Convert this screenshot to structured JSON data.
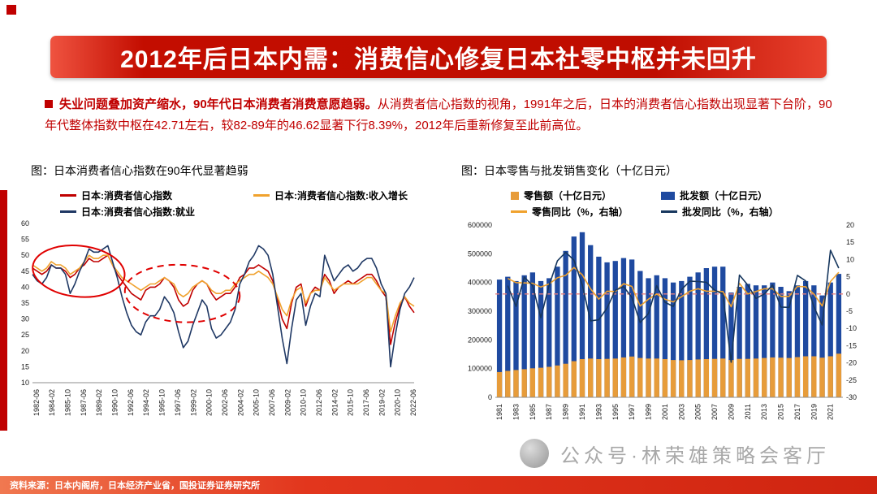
{
  "slide": {
    "title": "2012年后日本内需：消费信心修复日本社零中枢并未回升",
    "bullet": {
      "lead": "失业问题叠加资产缩水，90年代日本消费者消费意愿趋弱。",
      "body": "从消费者信心指数的视角，1991年之后，日本的消费者信心指数出现显著下台阶，90年代整体指数中枢在42.71左右，较82-89年的46.62显著下行8.39%，2012年后重新修复至此前高位。"
    },
    "left_caption": "图：日本消费者信心指数在90年代显著趋弱",
    "right_caption": "图：日本零售与批发销售变化（十亿日元）",
    "watermark": "公众号·林荣雄策略会客厅",
    "source": "资料来源：日本内阁府，日本经济产业省，国投证券证券研究所"
  },
  "colors": {
    "accent_red": "#c00000",
    "banner_red": "#c30d00",
    "footer_orange": "#e2361d",
    "watermark_gray": "#a8a8a8"
  },
  "chart_data": [
    {
      "type": "line",
      "title": "日本消费者信心指数在90年代显著趋弱",
      "x_start": 1982.0,
      "x_step": 0.5,
      "ylim": [
        10,
        60
      ],
      "y_ticks": [
        10,
        15,
        20,
        25,
        30,
        35,
        40,
        45,
        50,
        55,
        60
      ],
      "x_tick_labels": [
        "1982-06",
        "1984-02",
        "1985-10",
        "1987-06",
        "1989-02",
        "1990-10",
        "1992-06",
        "1994-02",
        "1995-10",
        "1997-06",
        "1999-02",
        "2000-10",
        "2002-06",
        "2004-02",
        "2005-10",
        "2007-06",
        "2009-02",
        "2010-10",
        "2012-06",
        "2014-02",
        "2015-10",
        "2017-06",
        "2019-02",
        "2020-10",
        "2022-06"
      ],
      "series": [
        {
          "name": "日本:消费者信心指数",
          "color": "#c00000",
          "values": [
            46,
            45,
            44,
            45,
            47,
            46,
            46,
            45,
            43,
            44,
            46,
            47,
            49,
            48,
            48,
            49,
            50,
            47,
            44,
            42,
            40,
            38,
            37,
            36,
            39,
            40,
            40,
            41,
            43,
            42,
            40,
            36,
            34,
            35,
            39,
            41,
            42,
            41,
            38,
            36,
            37,
            38,
            38,
            40,
            43,
            44,
            46,
            46,
            47,
            46,
            45,
            42,
            36,
            30,
            27,
            35,
            40,
            41,
            34,
            38,
            40,
            39,
            44,
            42,
            38,
            40,
            41,
            42,
            41,
            42,
            43,
            44,
            44,
            42,
            39,
            37,
            22,
            29,
            34,
            37,
            34,
            32
          ]
        },
        {
          "name": "日本:消费者信心指数:收入增长",
          "color": "#f0a22e",
          "values": [
            47,
            46,
            45,
            46,
            48,
            47,
            47,
            46,
            44,
            45,
            46,
            48,
            50,
            49,
            49,
            50,
            50,
            47,
            45,
            43,
            42,
            41,
            40,
            39,
            40,
            41,
            41,
            42,
            43,
            42,
            41,
            38,
            37,
            38,
            40,
            41,
            42,
            41,
            39,
            38,
            38,
            39,
            39,
            41,
            42,
            43,
            44,
            44,
            45,
            44,
            43,
            41,
            37,
            33,
            31,
            36,
            39,
            40,
            35,
            38,
            39,
            39,
            43,
            41,
            39,
            40,
            41,
            41,
            41,
            41,
            42,
            43,
            43,
            41,
            39,
            38,
            26,
            31,
            35,
            37,
            35,
            34
          ]
        },
        {
          "name": "日本:消费者信心指数:就业",
          "color": "#1f3864",
          "values": [
            44,
            42,
            41,
            43,
            47,
            46,
            46,
            44,
            38,
            41,
            45,
            48,
            52,
            51,
            51,
            52,
            53,
            48,
            43,
            37,
            32,
            28,
            26,
            25,
            29,
            31,
            31,
            33,
            37,
            35,
            32,
            26,
            21,
            23,
            28,
            32,
            36,
            34,
            27,
            24,
            25,
            27,
            29,
            33,
            41,
            44,
            48,
            50,
            53,
            52,
            50,
            44,
            34,
            24,
            16,
            27,
            36,
            38,
            28,
            34,
            38,
            37,
            50,
            46,
            42,
            44,
            46,
            47,
            45,
            46,
            48,
            49,
            49,
            46,
            41,
            38,
            15,
            25,
            33,
            38,
            40,
            43
          ]
        }
      ],
      "annotations": [
        {
          "shape": "ellipse",
          "style": "solid",
          "color": "#e00000",
          "x_range": [
            1982,
            1991.8
          ],
          "y_range": [
            37,
            53
          ],
          "rotate": 6
        },
        {
          "shape": "ellipse",
          "style": "dashed",
          "color": "#e00000",
          "x_range": [
            1991.8,
            2004
          ],
          "y_range": [
            29,
            47
          ],
          "rotate": 3
        }
      ]
    },
    {
      "type": "combo-bar-line",
      "title": "日本零售与批发销售变化（十亿日元）",
      "start_year": 1981,
      "left_axis": {
        "min": 0,
        "max": 600000,
        "ticks": [
          0,
          100000,
          200000,
          300000,
          400000,
          500000,
          600000
        ]
      },
      "right_axis": {
        "min": -30,
        "max": 20,
        "ticks": [
          20,
          15,
          10,
          5,
          0,
          -5,
          -10,
          -15,
          -20,
          -25,
          -30
        ]
      },
      "x_tick_labels": [
        "1981",
        "1983",
        "1985",
        "1987",
        "1989",
        "1991",
        "1993",
        "1995",
        "1997",
        "1999",
        "2001",
        "2003",
        "2005",
        "2007",
        "2009",
        "2011",
        "2013",
        "2015",
        "2017",
        "2019",
        "2021"
      ],
      "bars": [
        {
          "name": "零售额（十亿日元）",
          "color": "#e79c3a",
          "swatch": "square",
          "values": [
            88000,
            92000,
            95000,
            98000,
            101000,
            103000,
            106000,
            111000,
            117000,
            126000,
            133000,
            135000,
            133000,
            134000,
            135000,
            139000,
            142000,
            137000,
            135000,
            135000,
            133000,
            130000,
            129000,
            130000,
            132000,
            133000,
            134000,
            135000,
            130000,
            134000,
            134000,
            135000,
            137000,
            139000,
            138000,
            137000,
            140000,
            143000,
            143000,
            138000,
            143000,
            152000
          ]
        },
        {
          "name": "批发额（十亿日元）",
          "color": "#1f4aa0",
          "swatch": "rect",
          "values": [
            410000,
            420000,
            405000,
            425000,
            435000,
            405000,
            415000,
            455000,
            510000,
            560000,
            575000,
            530000,
            490000,
            470000,
            475000,
            485000,
            480000,
            440000,
            415000,
            425000,
            415000,
            400000,
            405000,
            420000,
            435000,
            450000,
            455000,
            455000,
            365000,
            385000,
            395000,
            390000,
            390000,
            400000,
            385000,
            370000,
            390000,
            405000,
            390000,
            355000,
            400000,
            430000
          ]
        }
      ],
      "lines": [
        {
          "name": "零售同比（%，右轴）",
          "color": "#f0a22e",
          "values": [
            null,
            4.5,
            3.3,
            3.2,
            3.1,
            2.0,
            2.9,
            4.7,
            5.4,
            7.7,
            5.6,
            1.5,
            -1.5,
            0.8,
            0.7,
            3.0,
            2.2,
            -3.5,
            -1.5,
            0.0,
            -1.5,
            -2.3,
            -0.8,
            0.8,
            1.5,
            0.8,
            0.8,
            0.7,
            -3.7,
            3.1,
            0.0,
            0.7,
            1.5,
            1.5,
            -0.7,
            -0.7,
            2.2,
            2.1,
            0.0,
            -3.5,
            3.6,
            6.3
          ]
        },
        {
          "name": "批发同比（%，右轴）",
          "color": "#17375e",
          "values": [
            null,
            2.4,
            -3.6,
            4.9,
            2.4,
            -6.9,
            2.5,
            9.6,
            12.1,
            9.8,
            2.7,
            -7.8,
            -7.5,
            -4.1,
            1.1,
            2.1,
            -1.0,
            -8.3,
            -5.7,
            2.4,
            -2.4,
            -3.6,
            1.3,
            3.7,
            3.6,
            3.4,
            1.1,
            0.0,
            -19.8,
            5.5,
            2.6,
            -1.3,
            0.0,
            2.6,
            -3.8,
            -3.9,
            5.4,
            3.8,
            -3.7,
            -9.0,
            12.7,
            7.5
          ]
        }
      ],
      "zero_line": {
        "value": 0,
        "color": "#e87f7f",
        "style": "dashed"
      }
    }
  ]
}
